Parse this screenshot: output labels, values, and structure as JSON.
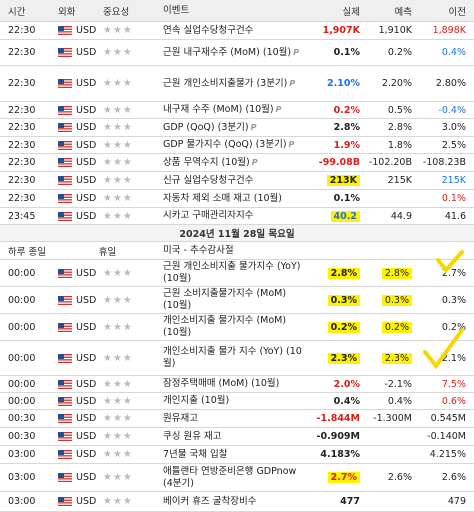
{
  "header": [
    "시간",
    "외화",
    "중요성",
    "이벤트",
    "실제",
    "예측",
    "이전"
  ],
  "events_before": [
    {
      "time": "22:30",
      "currency": "USD",
      "event": "연속 실업수당청구건수",
      "actual": "1,907K",
      "forecast": "1,910K",
      "previous": "1,898K",
      "actual_color": "red",
      "previous_color": "red"
    },
    {
      "time": "22:30",
      "currency": "USD",
      "event": "근원 내구재수주 (MoM) (10월)",
      "actual": "0.1%",
      "forecast": "0.2%",
      "previous": "0.4%",
      "previous_color": "blue",
      "preliminary": true
    },
    {
      "time": "22:30",
      "currency": "USD",
      "event": "근원 개인소비지출물가 (3분기)",
      "actual": "2.10%",
      "forecast": "2.20%",
      "previous": "2.80%",
      "actual_color": "blue",
      "preliminary": true
    },
    {
      "time": "22:30",
      "currency": "USD",
      "event": "내구재 수주 (MoM) (10월)",
      "actual": "0.2%",
      "forecast": "0.5%",
      "previous": "-0.4%",
      "actual_color": "red",
      "previous_color": "blue",
      "preliminary": true
    },
    {
      "time": "22:30",
      "currency": "USD",
      "event": "GDP (QoQ) (3분기)",
      "actual": "2.8%",
      "forecast": "2.8%",
      "previous": "3.0%",
      "preliminary": true
    },
    {
      "time": "22:30",
      "currency": "USD",
      "event": "GDP 물가지수 (QoQ) (3분기)",
      "actual": "1.9%",
      "forecast": "1.8%",
      "previous": "2.5%",
      "actual_color": "red",
      "preliminary": true
    },
    {
      "time": "22:30",
      "currency": "USD",
      "event": "상품 무역수지 (10월)",
      "actual": "-99.08B",
      "forecast": "-102.20B",
      "previous": "-108.23B",
      "actual_color": "red",
      "preliminary": true
    },
    {
      "time": "22:30",
      "currency": "USD",
      "event": "신규 실업수당청구건수",
      "actual": "213K",
      "forecast": "215K",
      "previous": "215K",
      "actual_highlight": true,
      "previous_color": "blue"
    },
    {
      "time": "22:30",
      "currency": "USD",
      "event": "자동차 제외 소매 재고 (10월)",
      "actual": "0.1%",
      "forecast": null,
      "previous": "0.1%",
      "previous_color": "red"
    },
    {
      "time": "23:45",
      "currency": "USD",
      "event": "시카고 구매관리자지수",
      "actual": "40.2",
      "forecast": "44.9",
      "previous": "41.6",
      "actual_highlight": true,
      "actual_color": "blue"
    }
  ],
  "date": "2024년 11월 28일 목요일",
  "holiday": {
    "time": "하루 종일",
    "label": "휴일",
    "event": "미국 - 추수감사절"
  },
  "events_after": [
    {
      "time": "00:00",
      "currency": "USD",
      "event": "근원 개인소비지출 물가지수 (YoY) (10월)",
      "actual": "2.8%",
      "forecast": "2.8%",
      "previous": "2.7%",
      "actual_highlight": true,
      "forecast_highlight": true
    },
    {
      "time": "00:00",
      "currency": "USD",
      "event": "근원 소비지출물가지수 (MoM) (10월)",
      "actual": "0.3%",
      "forecast": "0.3%",
      "previous": "0.3%",
      "actual_highlight": true,
      "forecast_highlight": true
    },
    {
      "time": "00:00",
      "currency": "USD",
      "event": "개인소비지출 물가지수 (MoM) (10월)",
      "actual": "0.2%",
      "forecast": "0.2%",
      "previous": "0.2%",
      "actual_highlight": true,
      "forecast_highlight": true
    },
    {
      "time": "00:00",
      "currency": "USD",
      "event": "개인소비지출 물가 지수 (YoY) (10월)",
      "actual": "2.3%",
      "forecast": "2.3%",
      "previous": "2.1%",
      "actual_highlight": true,
      "forecast_highlight": true
    },
    {
      "time": "00:00",
      "currency": "USD",
      "event": "잠정주택매매 (MoM) (10월)",
      "actual": "2.0%",
      "forecast": "-2.1%",
      "previous": "7.5%",
      "actual_color": "red",
      "previous_color": "red"
    },
    {
      "time": "00:00",
      "currency": "USD",
      "event": "개인지출 (10월)",
      "actual": "0.4%",
      "forecast": "0.4%",
      "previous": "0.6%",
      "previous_color": "red"
    },
    {
      "time": "00:30",
      "currency": "USD",
      "event": "원유재고",
      "actual": "-1.844M",
      "forecast": "-1.300M",
      "previous": "0.545M",
      "actual_color": "red"
    },
    {
      "time": "00:30",
      "currency": "USD",
      "event": "쿠싱 원유 재고",
      "actual": "-0.909M",
      "forecast": null,
      "previous": "-0.140M"
    },
    {
      "time": "03:00",
      "currency": "USD",
      "event": "7년물 국채 입찰",
      "actual": "4.183%",
      "forecast": null,
      "previous": "4.215%"
    },
    {
      "time": "03:00",
      "currency": "USD",
      "event": "애틀랜타 연방준비은행 GDPnow (4분기)",
      "actual": "2.7%",
      "forecast": "2.6%",
      "previous": "2.6%",
      "actual_highlight": true,
      "actual_color": "red"
    },
    {
      "time": "03:00",
      "currency": "USD",
      "event": "베이커 휴즈 굴착장비수",
      "actual": "477",
      "forecast": null,
      "previous": "479"
    }
  ]
}
